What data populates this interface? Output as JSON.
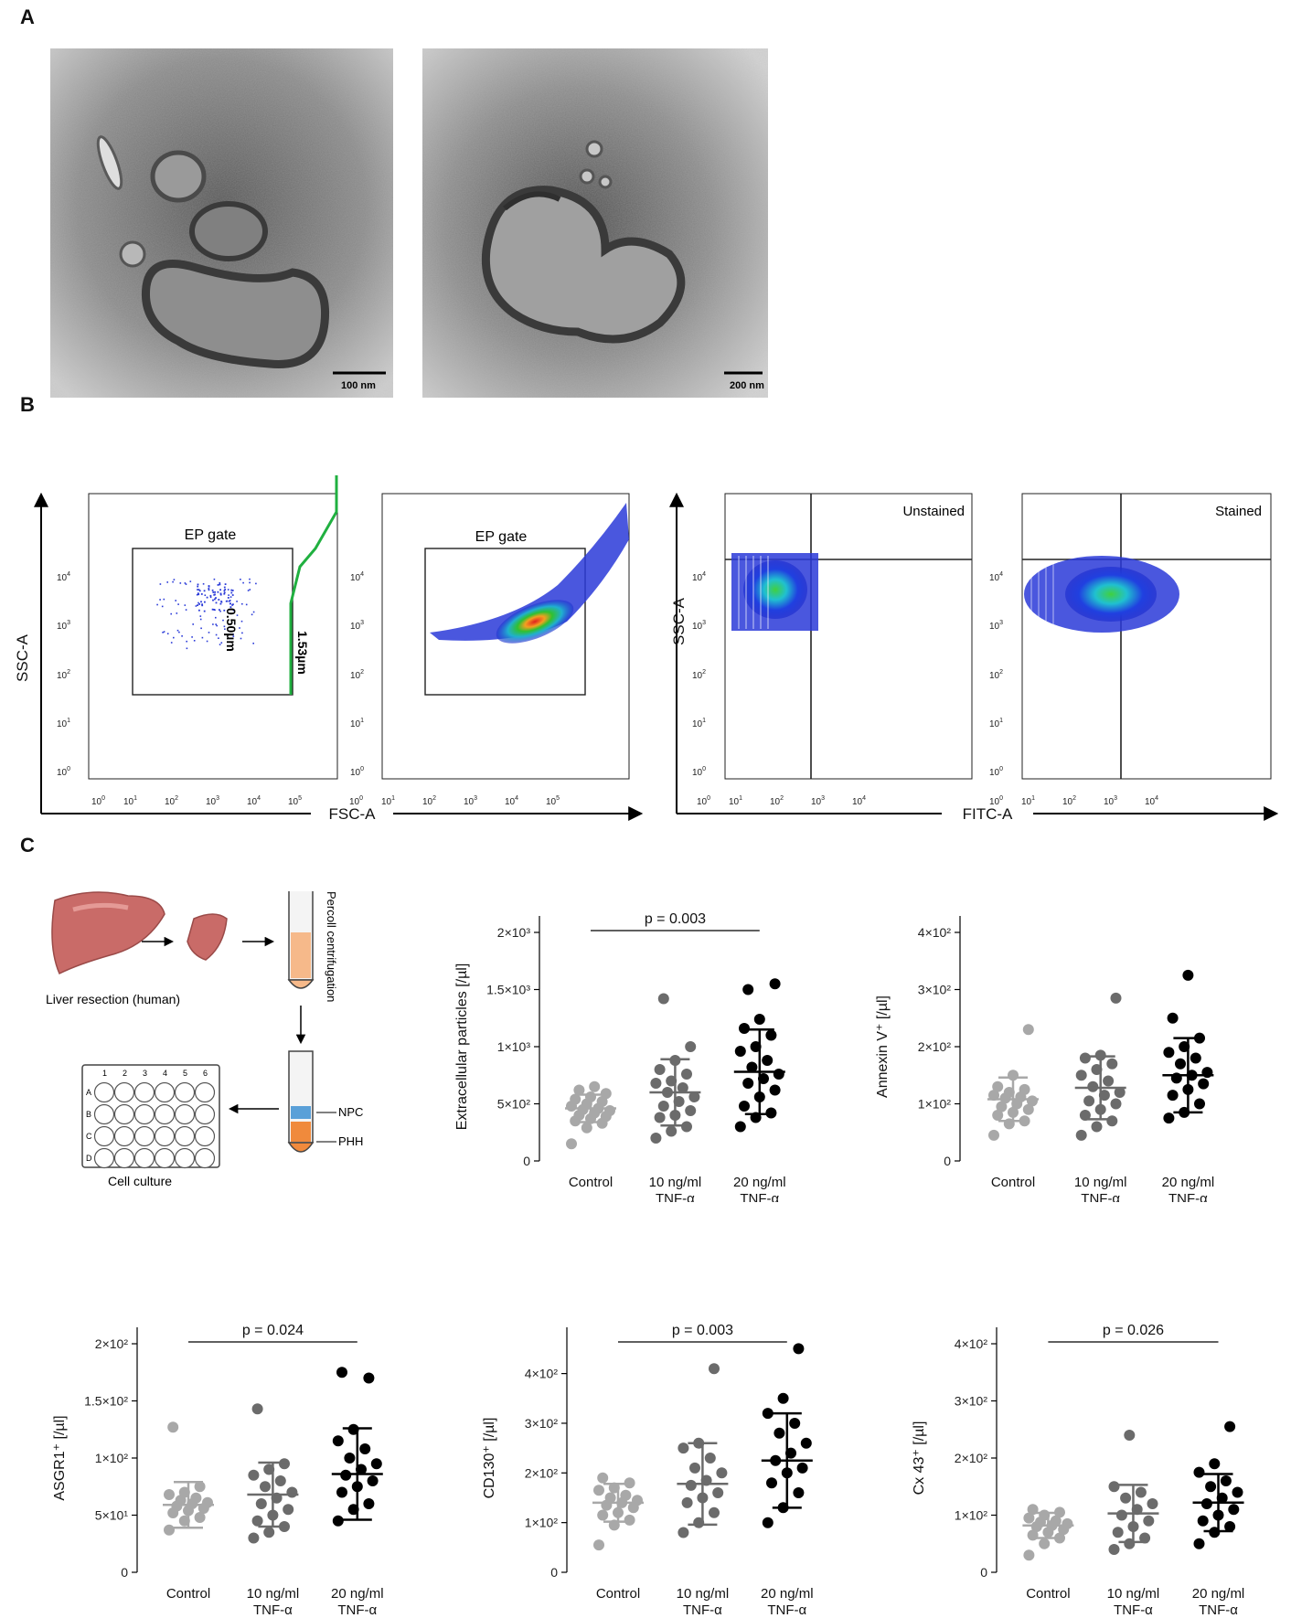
{
  "panels": {
    "a": "A",
    "b": "B",
    "c": "C"
  },
  "em_images": [
    {
      "scale_bar": "100 nm"
    },
    {
      "scale_bar": "200 nm"
    }
  ],
  "flow": {
    "y_axis_label": "SSC-A",
    "x_axis_label_left": "FSC-A",
    "x_axis_label_right": "FITC-A",
    "gate_label": "EP gate",
    "bead_label_1": "0.50µm",
    "bead_label_2": "1.53µm",
    "unstained": "Unstained",
    "stained": "Stained",
    "tick_base": "10",
    "fsc_exponents": [
      "0",
      "1",
      "2",
      "3",
      "4",
      "5"
    ],
    "ssc_exponents": [
      "0",
      "1",
      "2",
      "3",
      "4"
    ],
    "fitc_exponents": [
      "0",
      "1",
      "2",
      "3",
      "4"
    ]
  },
  "schematic": {
    "liver_caption": "Liver resection (human)",
    "percoll": "Percoll centrifugation",
    "npc": "NPC",
    "phh": "PHH",
    "culture": "Cell culture",
    "plate_cols": [
      "1",
      "2",
      "3",
      "4",
      "5",
      "6"
    ],
    "plate_rows": [
      "A",
      "B",
      "C",
      "D"
    ],
    "colors": {
      "liver": "#c96b68",
      "cells_orange": "#f08a3c",
      "cells_blue": "#5aa0d8"
    }
  },
  "chart_data": [
    {
      "type": "scatter",
      "ylabel": "Extracellular particles [/µl]",
      "categories": [
        "Control",
        "10 ng/ml TNF-α",
        "20 ng/ml TNF-α"
      ],
      "yticks": [
        "0",
        "5×10²",
        "1×10³",
        "1.5×10³",
        "2×10³"
      ],
      "ylim": [
        0,
        2000
      ],
      "pvalue": {
        "text": "p = 0.003",
        "from": 0,
        "to": 2
      },
      "colors": [
        "#a8a8a8",
        "#6b6b6b",
        "#000000"
      ],
      "series": [
        {
          "values": [
            150,
            290,
            330,
            350,
            370,
            390,
            400,
            420,
            440,
            450,
            460,
            480,
            500,
            520,
            540,
            560,
            590,
            620,
            650
          ],
          "mean": 460,
          "sd": 120
        },
        {
          "values": [
            200,
            260,
            300,
            380,
            400,
            440,
            480,
            520,
            560,
            600,
            640,
            680,
            700,
            760,
            800,
            880,
            1000,
            1420
          ],
          "mean": 600,
          "sd": 290
        },
        {
          "values": [
            300,
            380,
            420,
            480,
            560,
            620,
            680,
            720,
            760,
            820,
            880,
            960,
            1000,
            1100,
            1160,
            1240,
            1550,
            1500
          ],
          "mean": 780,
          "sd": 370
        }
      ]
    },
    {
      "type": "scatter",
      "ylabel": "Annexin V⁺ [/µl]",
      "categories": [
        "Control",
        "10 ng/ml TNF-α",
        "20 ng/ml TNF-α"
      ],
      "yticks": [
        "0",
        "1×10²",
        "2×10²",
        "3×10²",
        "4×10²"
      ],
      "ylim": [
        0,
        400
      ],
      "colors": [
        "#a8a8a8",
        "#6b6b6b",
        "#000000"
      ],
      "series": [
        {
          "values": [
            45,
            65,
            70,
            80,
            85,
            90,
            95,
            100,
            105,
            110,
            112,
            115,
            120,
            125,
            130,
            150,
            230
          ],
          "mean": 108,
          "sd": 38
        },
        {
          "values": [
            45,
            60,
            70,
            80,
            90,
            100,
            105,
            115,
            120,
            130,
            140,
            150,
            160,
            170,
            180,
            185,
            285
          ],
          "mean": 128,
          "sd": 55
        },
        {
          "values": [
            75,
            85,
            100,
            115,
            125,
            135,
            145,
            150,
            155,
            170,
            180,
            190,
            200,
            215,
            250,
            325
          ],
          "mean": 150,
          "sd": 65
        }
      ]
    },
    {
      "type": "scatter",
      "ylabel": "ASGR1⁺ [/µl]",
      "categories": [
        "Control",
        "10 ng/ml TNF-α",
        "20 ng/ml TNF-α"
      ],
      "yticks": [
        "0",
        "5×10¹",
        "1×10²",
        "1.5×10²",
        "2×10²"
      ],
      "ylim": [
        0,
        200
      ],
      "pvalue": {
        "text": "p = 0.024",
        "from": 0,
        "to": 2
      },
      "colors": [
        "#a8a8a8",
        "#6b6b6b",
        "#000000"
      ],
      "series": [
        {
          "values": [
            37,
            45,
            48,
            52,
            54,
            56,
            58,
            60,
            61,
            63,
            65,
            68,
            70,
            75,
            127
          ],
          "mean": 59,
          "sd": 20
        },
        {
          "values": [
            30,
            35,
            40,
            45,
            50,
            55,
            60,
            65,
            70,
            75,
            80,
            85,
            90,
            95,
            143
          ],
          "mean": 68,
          "sd": 28
        },
        {
          "values": [
            45,
            55,
            60,
            70,
            75,
            80,
            85,
            90,
            95,
            100,
            108,
            115,
            125,
            170,
            175
          ],
          "mean": 86,
          "sd": 40
        }
      ]
    },
    {
      "type": "scatter",
      "ylabel": "CD130⁺ [/µl]",
      "categories": [
        "Control",
        "10 ng/ml TNF-α",
        "20 ng/ml TNF-α"
      ],
      "yticks": [
        "0",
        "1×10²",
        "2×10²",
        "3×10²",
        "4×10²"
      ],
      "ylim": [
        0,
        460
      ],
      "pvalue": {
        "text": "p = 0.003",
        "from": 0,
        "to": 2
      },
      "colors": [
        "#a8a8a8",
        "#6b6b6b",
        "#000000"
      ],
      "series": [
        {
          "values": [
            55,
            95,
            105,
            115,
            120,
            130,
            135,
            140,
            145,
            150,
            155,
            165,
            170,
            180,
            190
          ],
          "mean": 140,
          "sd": 38
        },
        {
          "values": [
            80,
            100,
            120,
            140,
            150,
            160,
            175,
            185,
            200,
            210,
            230,
            250,
            260,
            410
          ],
          "mean": 178,
          "sd": 82
        },
        {
          "values": [
            100,
            130,
            160,
            180,
            200,
            210,
            225,
            240,
            260,
            280,
            300,
            320,
            350,
            450
          ],
          "mean": 225,
          "sd": 95
        }
      ]
    },
    {
      "type": "scatter",
      "ylabel": "Cx 43⁺ [/µl]",
      "categories": [
        "Control",
        "10 ng/ml TNF-α",
        "20 ng/ml TNF-α"
      ],
      "yticks": [
        "0",
        "1×10²",
        "2×10²",
        "3×10²",
        "4×10²"
      ],
      "ylim": [
        0,
        400
      ],
      "pvalue": {
        "text": "p = 0.026",
        "from": 0,
        "to": 2
      },
      "colors": [
        "#a8a8a8",
        "#6b6b6b",
        "#000000"
      ],
      "series": [
        {
          "values": [
            30,
            50,
            60,
            65,
            70,
            75,
            80,
            82,
            85,
            88,
            90,
            95,
            100,
            105,
            110
          ],
          "mean": 82,
          "sd": 22
        },
        {
          "values": [
            40,
            50,
            60,
            70,
            80,
            90,
            100,
            110,
            120,
            130,
            140,
            150,
            240
          ],
          "mean": 103,
          "sd": 50
        },
        {
          "values": [
            50,
            70,
            80,
            90,
            100,
            110,
            120,
            130,
            140,
            150,
            160,
            175,
            190,
            255
          ],
          "mean": 122,
          "sd": 50
        }
      ]
    }
  ]
}
